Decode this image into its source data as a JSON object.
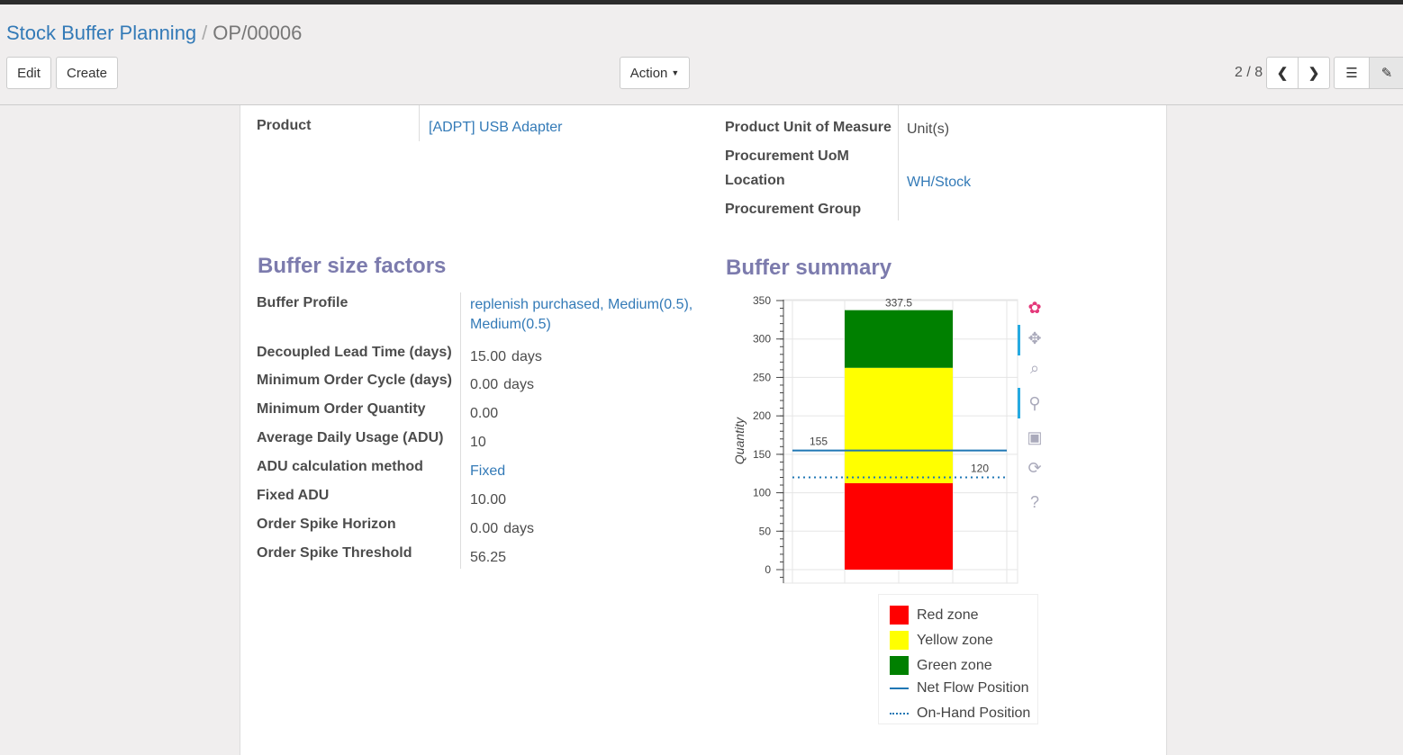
{
  "breadcrumb": {
    "parent": "Stock Buffer Planning",
    "current": "OP/00006"
  },
  "toolbar": {
    "edit": "Edit",
    "create": "Create",
    "action": "Action",
    "pager": "2 / 8"
  },
  "fields_top": {
    "product_label": "Product",
    "product_value": "[ADPT] USB Adapter",
    "uom_label": "Product Unit of Measure",
    "uom_value": "Unit(s)",
    "proc_uom_label": "Procurement UoM",
    "location_label": "Location",
    "location_value": "WH/Stock",
    "group_label": "Procurement Group"
  },
  "factors": {
    "title": "Buffer size factors",
    "rows": [
      {
        "label": "Buffer Profile",
        "value": "replenish purchased, Medium(0.5), Medium(0.5)",
        "link": true
      },
      {
        "label": "Decoupled Lead Time (days)",
        "value": "15.00",
        "unit": "days"
      },
      {
        "label": "Minimum Order Cycle (days)",
        "value": "0.00",
        "unit": "days"
      },
      {
        "label": "Minimum Order Quantity",
        "value": "0.00"
      },
      {
        "label": "Average Daily Usage (ADU)",
        "value": "10"
      },
      {
        "label": "ADU calculation method",
        "value": "Fixed",
        "link": true
      },
      {
        "label": "Fixed ADU",
        "value": "10.00"
      },
      {
        "label": "Order Spike Horizon",
        "value": "0.00",
        "unit": "days"
      },
      {
        "label": "Order Spike Threshold",
        "value": "56.25"
      }
    ]
  },
  "summary": {
    "title": "Buffer summary"
  },
  "chart_data": {
    "type": "bar",
    "ylabel": "Quantity",
    "ylim": [
      -16,
      351
    ],
    "yticks": [
      0,
      50,
      100,
      150,
      200,
      250,
      300,
      350
    ],
    "stacked": [
      {
        "name": "Red zone",
        "from": 0,
        "to": 112.5,
        "color": "#ff0000",
        "label": "112.5"
      },
      {
        "name": "Yellow zone",
        "from": 112.5,
        "to": 262.5,
        "color": "#ffff00",
        "label": "262.5"
      },
      {
        "name": "Green zone",
        "from": 262.5,
        "to": 337.5,
        "color": "#008000",
        "label": "337.5"
      }
    ],
    "lines": [
      {
        "name": "Net Flow Position",
        "value": 155,
        "label": "155",
        "style": "solid",
        "color": "#1f77b4"
      },
      {
        "name": "On-Hand Position",
        "value": 120,
        "label": "120",
        "style": "dotted",
        "color": "#1f77b4"
      }
    ],
    "grid": true,
    "legend_position": "bottom"
  },
  "tools": [
    "bokeh-logo-icon",
    "pan-icon",
    "box-zoom-icon",
    "wheel-zoom-icon",
    "save-icon",
    "reset-icon",
    "help-icon"
  ]
}
